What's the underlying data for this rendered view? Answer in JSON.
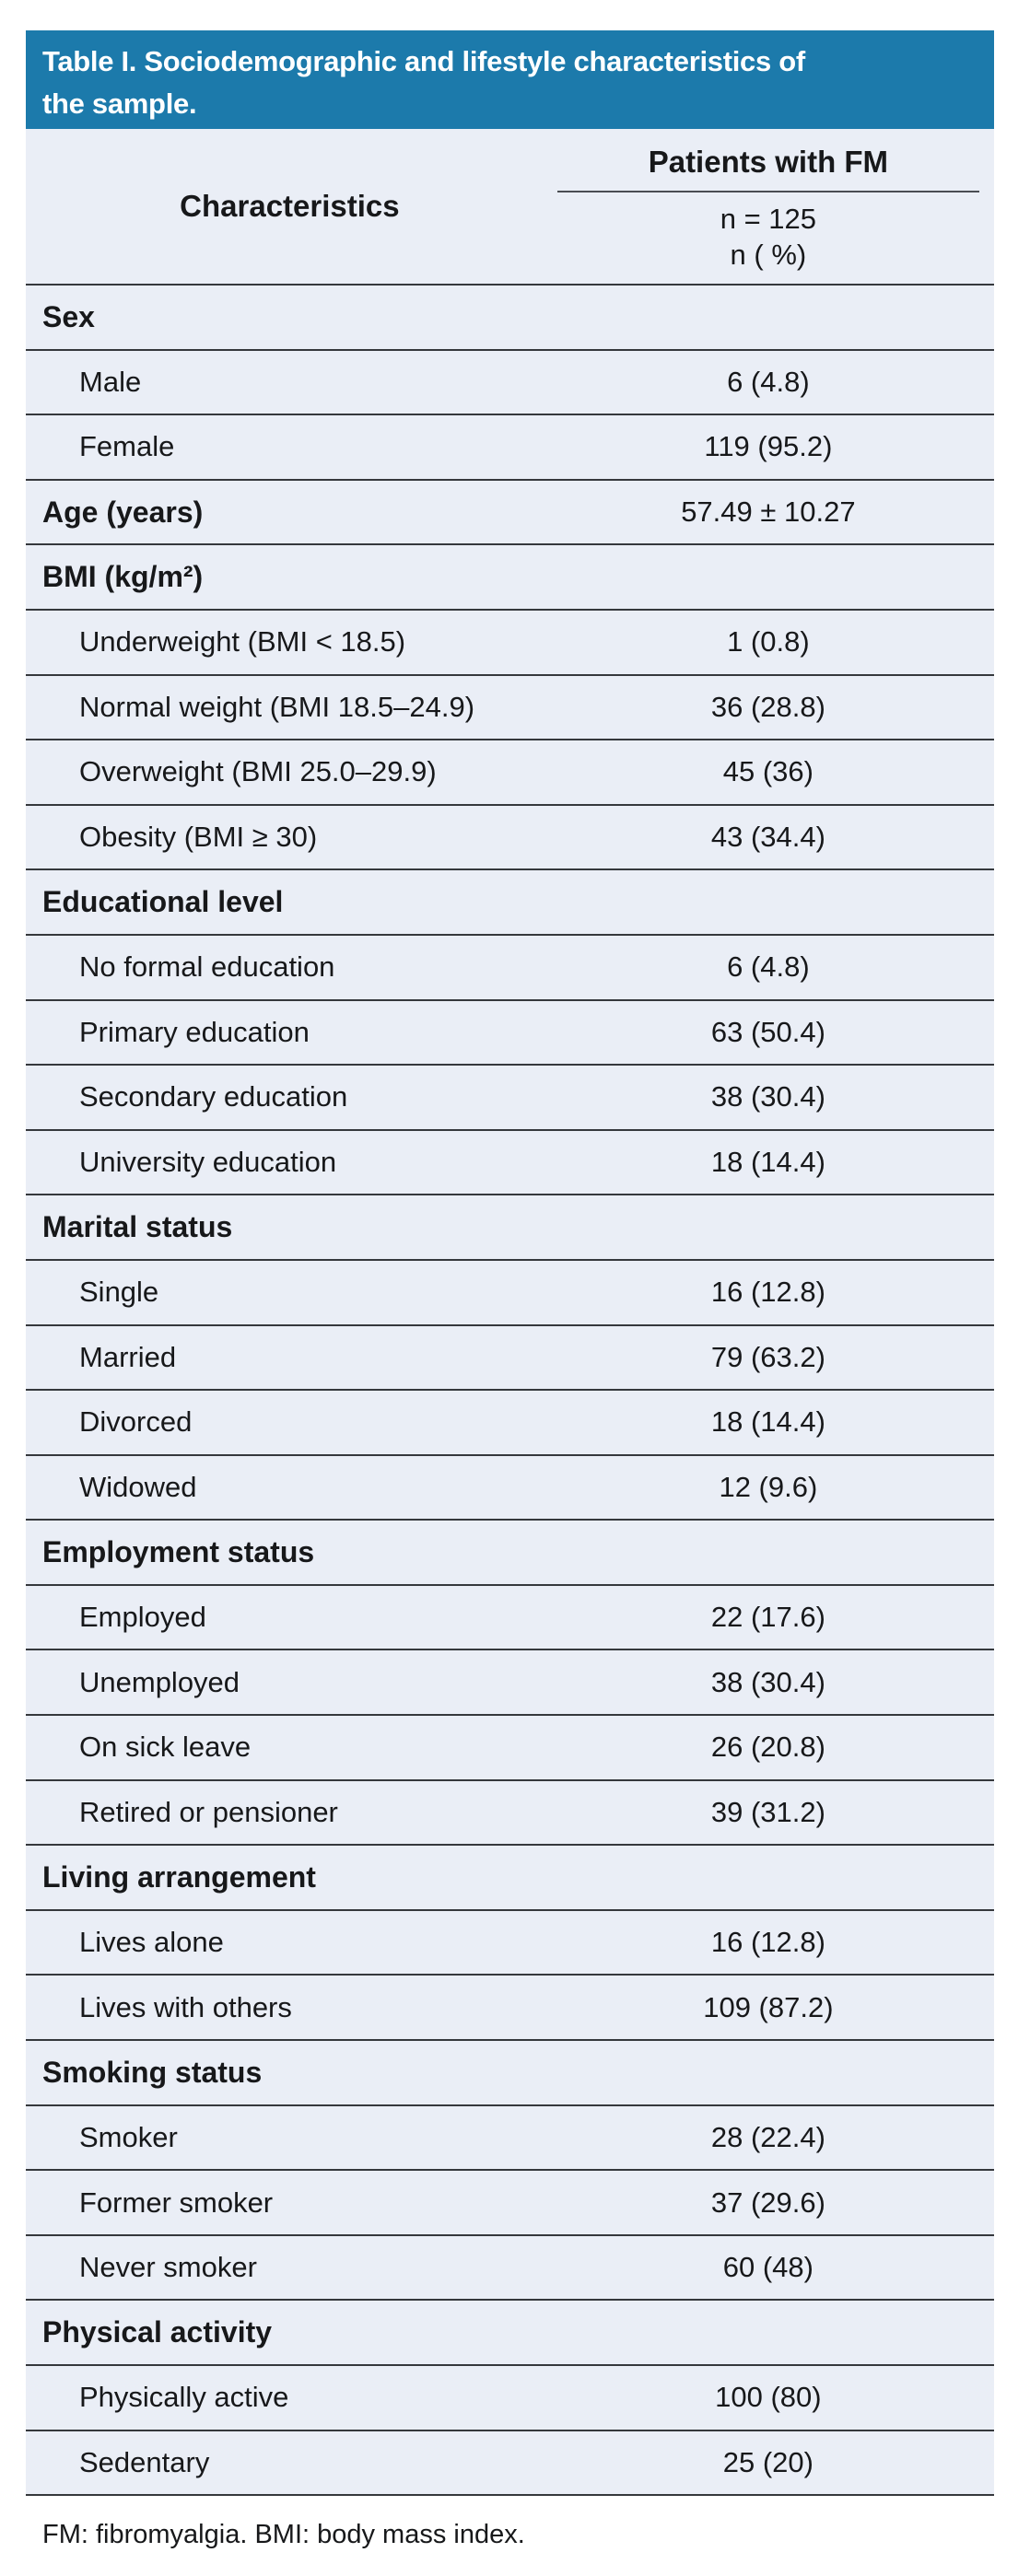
{
  "title": {
    "line1": "Table I. Sociodemographic and lifestyle characteristics of",
    "line2": "the sample."
  },
  "header": {
    "characteristics_label": "Characteristics",
    "group_label": "Patients with FM",
    "sample_size": "n = 125",
    "value_format": "n ( %)"
  },
  "sections": [
    {
      "label": "Sex",
      "value": "",
      "rows": [
        {
          "label": "Male",
          "value": "6 (4.8)"
        },
        {
          "label": "Female",
          "value": "119 (95.2)"
        }
      ]
    },
    {
      "label": "Age (years)",
      "value": "57.49 ± 10.27",
      "rows": []
    },
    {
      "label": "BMI (kg/m²)",
      "value": "",
      "rows": [
        {
          "label": "Underweight (BMI < 18.5)",
          "value": "1 (0.8)"
        },
        {
          "label": "Normal weight (BMI 18.5–24.9)",
          "value": "36 (28.8)"
        },
        {
          "label": "Overweight (BMI 25.0–29.9)",
          "value": "45 (36)"
        },
        {
          "label": "Obesity (BMI ≥ 30)",
          "value": "43 (34.4)"
        }
      ]
    },
    {
      "label": "Educational level",
      "value": "",
      "rows": [
        {
          "label": "No formal education",
          "value": "6 (4.8)"
        },
        {
          "label": "Primary education",
          "value": "63 (50.4)"
        },
        {
          "label": "Secondary education",
          "value": "38 (30.4)"
        },
        {
          "label": "University education",
          "value": "18 (14.4)"
        }
      ]
    },
    {
      "label": "Marital status",
      "value": "",
      "rows": [
        {
          "label": "Single",
          "value": "16 (12.8)"
        },
        {
          "label": "Married",
          "value": "79 (63.2)"
        },
        {
          "label": "Divorced",
          "value": "18 (14.4)"
        },
        {
          "label": "Widowed",
          "value": "12 (9.6)"
        }
      ]
    },
    {
      "label": "Employment status",
      "value": "",
      "rows": [
        {
          "label": "Employed",
          "value": "22 (17.6)"
        },
        {
          "label": "Unemployed",
          "value": "38 (30.4)"
        },
        {
          "label": "On sick leave",
          "value": "26 (20.8)"
        },
        {
          "label": "Retired or pensioner",
          "value": "39 (31.2)"
        }
      ]
    },
    {
      "label": "Living arrangement",
      "value": "",
      "rows": [
        {
          "label": "Lives alone",
          "value": "16 (12.8)"
        },
        {
          "label": "Lives with others",
          "value": "109 (87.2)"
        }
      ]
    },
    {
      "label": "Smoking status",
      "value": "",
      "rows": [
        {
          "label": "Smoker",
          "value": "28 (22.4)"
        },
        {
          "label": "Former smoker",
          "value": "37 (29.6)"
        },
        {
          "label": "Never smoker",
          "value": "60 (48)"
        }
      ]
    },
    {
      "label": "Physical activity",
      "value": "",
      "rows": [
        {
          "label": "Physically active",
          "value": "100 (80)"
        },
        {
          "label": "Sedentary",
          "value": "25 (20)"
        }
      ]
    }
  ],
  "footnote": "FM: fibromyalgia. BMI: body mass index.",
  "colors": {
    "banner_bg": "#1C7AAB",
    "banner_text": "#FFFFFF",
    "row_bg": "#EAEEF6",
    "divider": "#35383C",
    "header_rule": "#4A4D52",
    "text": "#17181A",
    "page_bg": "#FFFFFF"
  }
}
